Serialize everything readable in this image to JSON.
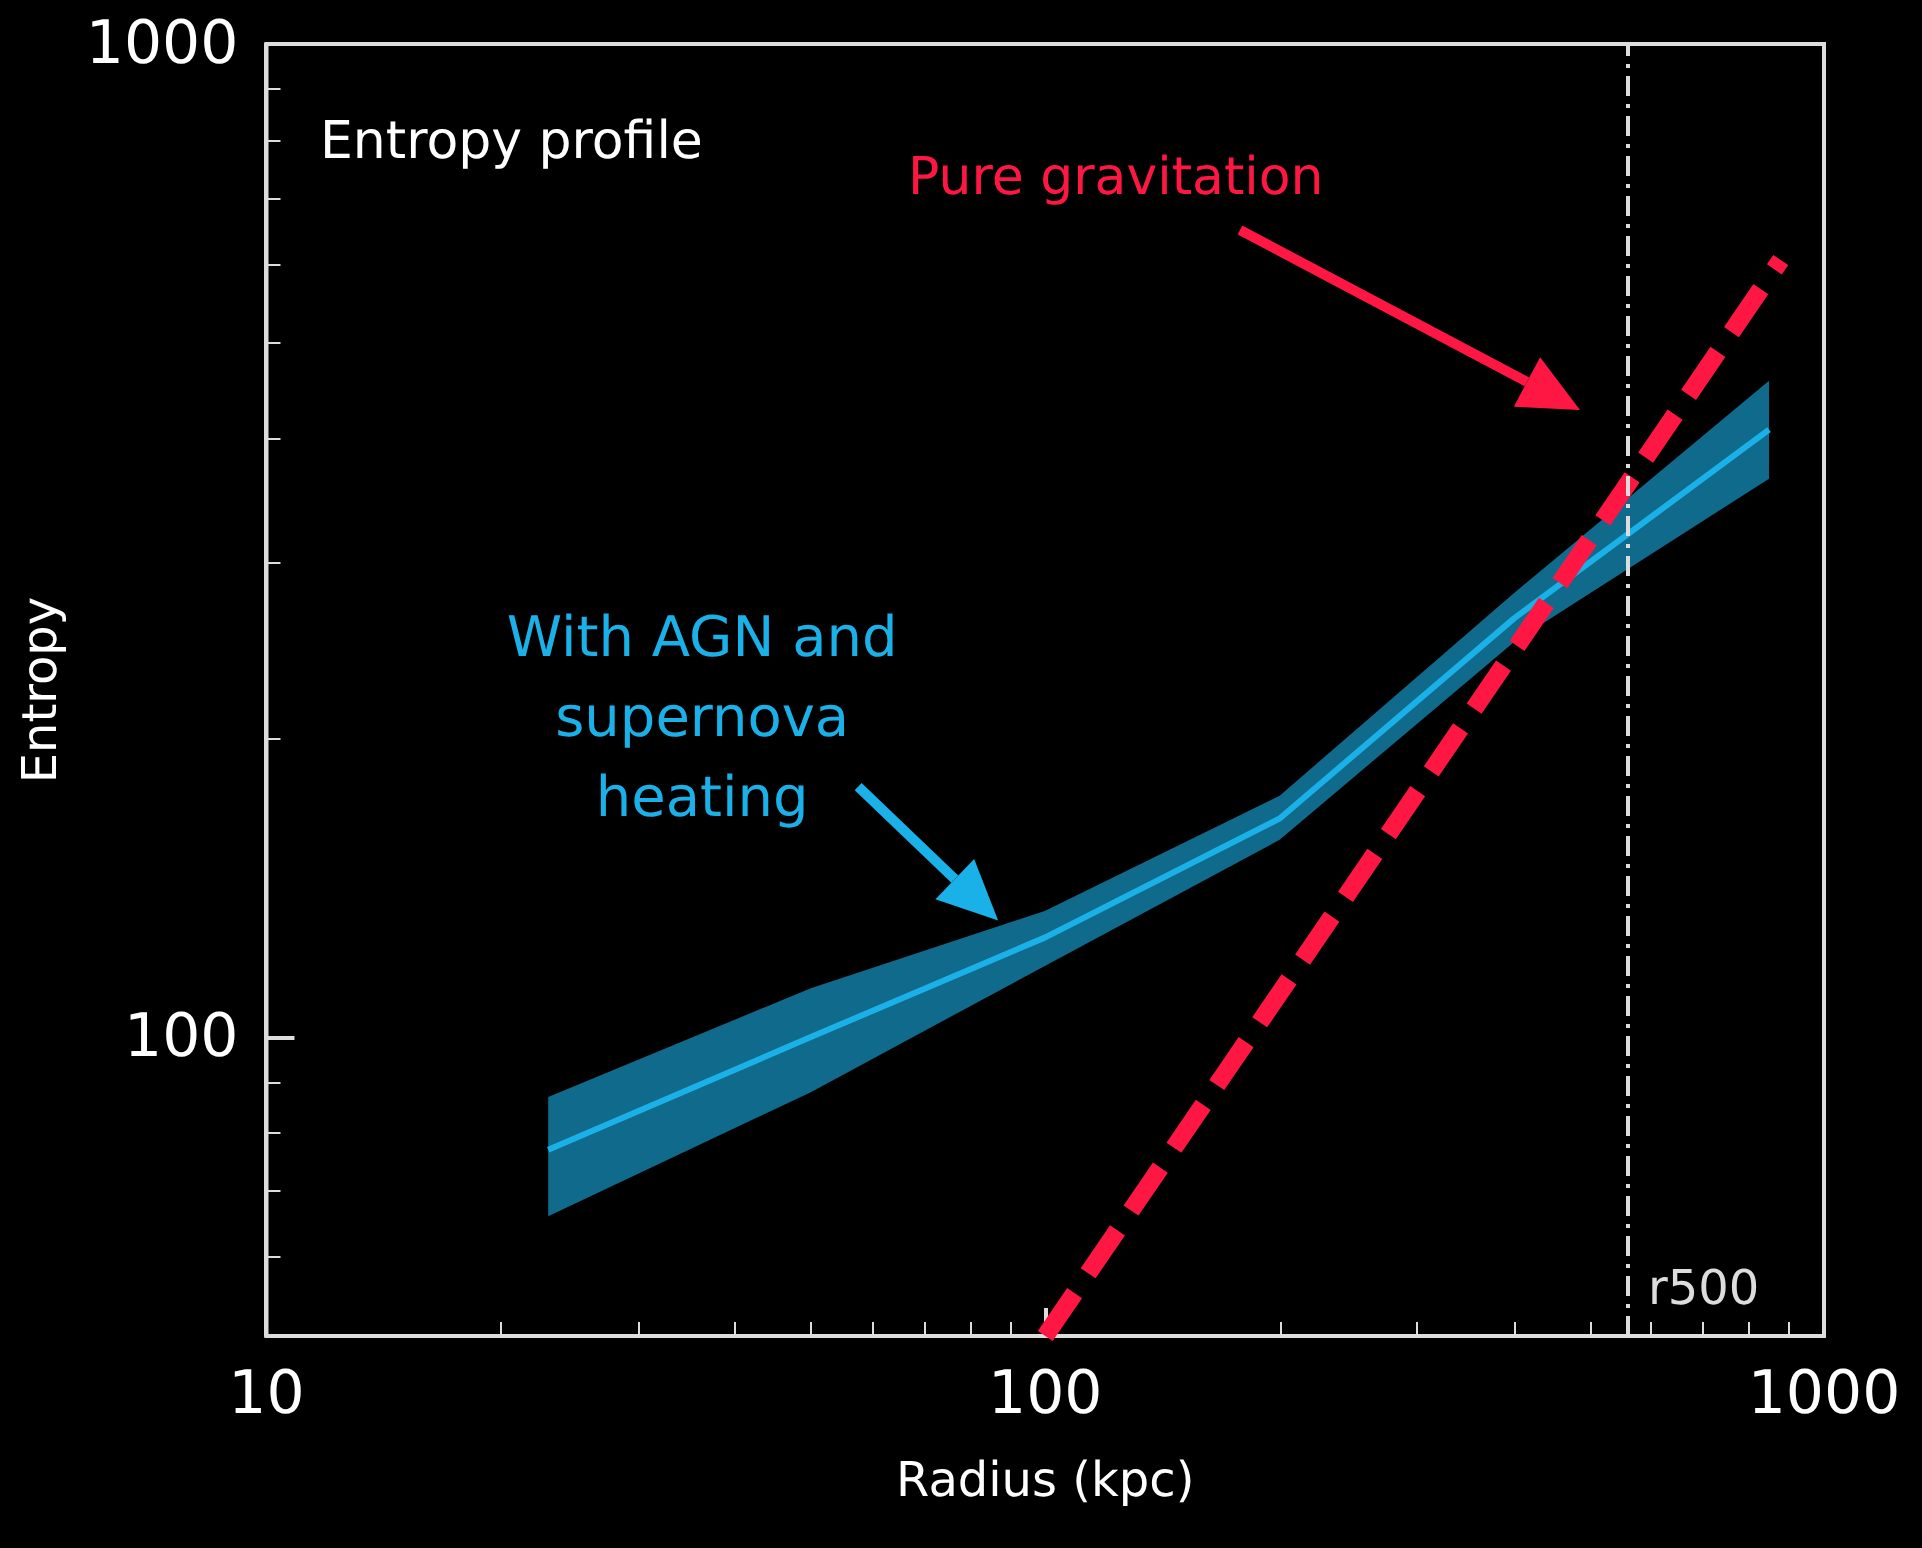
{
  "chart_data": {
    "type": "line",
    "xlabel": "Radius (kpc)",
    "ylabel": "Entropy",
    "log": "xy",
    "xlim": [
      10,
      1000
    ],
    "xticks": [
      10,
      100,
      1000
    ],
    "ylim": [
      50,
      1000
    ],
    "yticks": [
      100,
      1000
    ],
    "grid": false,
    "marker": "none",
    "series": [
      {
        "color": "#1ab0e8",
        "x": [
          23,
          50,
          100,
          200,
          400,
          850
        ],
        "values": [
          77,
          100,
          126,
          166,
          264,
          409
        ],
        "lower": [
          66,
          88,
          118,
          158,
          250,
          365
        ],
        "upper": [
          87,
          112,
          134,
          175,
          280,
          458
        ]
      },
      {
        "color": "#ff1744",
        "x": [
          100,
          880
        ],
        "values": [
          50,
          606
        ],
        "line_style": "dashed"
      }
    ],
    "ref_lines": [
      {
        "axis": "x",
        "value": 560,
        "label": "r500",
        "color": "#dddddd",
        "line_style": "dashed"
      }
    ],
    "annotations": [
      "Entropy profile",
      "Pure gravitation",
      {
        "text": "With AGN and\nsupernova\nheating",
        "x": 87,
        "y": 131
      }
    ]
  }
}
